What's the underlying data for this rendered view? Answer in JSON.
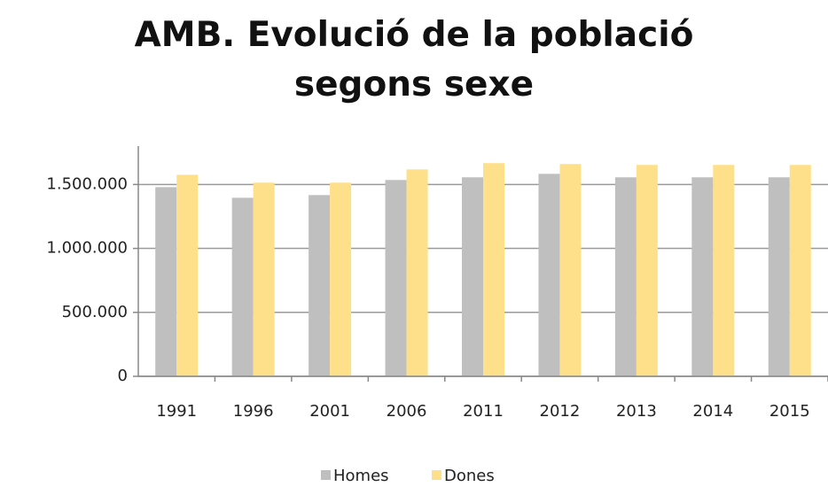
{
  "chart_data": {
    "type": "bar",
    "title": "AMB. Evolució de la població segons sexe",
    "categories": [
      "1991",
      "1996",
      "2001",
      "2006",
      "2011",
      "2012",
      "2013",
      "2014",
      "2015"
    ],
    "series": [
      {
        "name": "Homes",
        "color": "#bfbfbf",
        "values": [
          1479000,
          1396000,
          1417000,
          1535000,
          1556000,
          1583000,
          1556000,
          1556000,
          1556000
        ]
      },
      {
        "name": "Dones",
        "color": "#ffe08a",
        "values": [
          1576000,
          1514000,
          1514000,
          1618000,
          1667000,
          1660000,
          1653000,
          1653000,
          1653000
        ]
      }
    ],
    "ylim": [
      0,
      1800000
    ],
    "yticks": [
      0,
      {
        "value": 500000,
        "label": "500.000"
      },
      {
        "value": 1000000,
        "label": "1.000.000"
      },
      {
        "value": 1500000,
        "label": "1.500.000"
      }
    ],
    "grid": true,
    "legend": "bottom"
  }
}
